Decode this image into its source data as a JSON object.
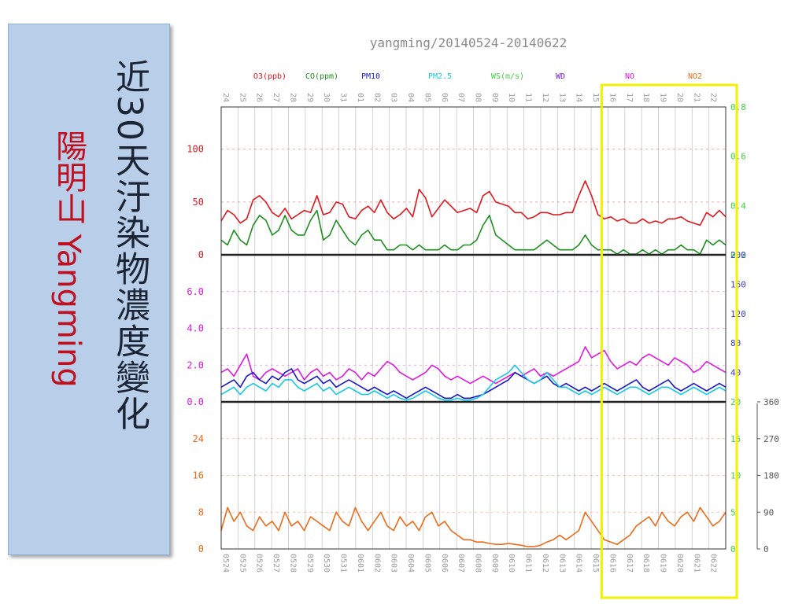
{
  "side_panel": {
    "title_vertical": "近30天汙染物濃度變化",
    "station_vertical": "陽明山 Yangming"
  },
  "colors": {
    "O3": "#e0181e",
    "CO": "#1e8f1e",
    "PM10": "#1818c8",
    "PM25": "#18c8e8",
    "WS": "#3cd23c",
    "WD": "#7a18c8",
    "NO": "#e018e0",
    "NO2": "#ee6a18",
    "highlight": "#f2f200"
  },
  "chart_data": {
    "type": "line",
    "title": "yangming/20140524-20140622",
    "legend": [
      "O3(ppb)",
      "CO(ppm)",
      "PM10",
      "PM2.5",
      "WS(m/s)",
      "WD",
      "NO",
      "NO2"
    ],
    "top_day_labels": [
      "24",
      "25",
      "26",
      "27",
      "28",
      "29",
      "30",
      "31",
      "01",
      "02",
      "03",
      "04",
      "05",
      "06",
      "07",
      "08",
      "09",
      "10",
      "11",
      "12",
      "13",
      "14",
      "15",
      "16",
      "17",
      "18",
      "19",
      "20",
      "21",
      "22"
    ],
    "bottom_day_labels": [
      "0524",
      "0525",
      "0526",
      "0527",
      "0528",
      "0529",
      "0530",
      "0531",
      "0601",
      "0602",
      "0603",
      "0604",
      "0605",
      "0606",
      "0607",
      "0608",
      "0609",
      "0610",
      "0611",
      "0612",
      "0613",
      "0614",
      "0615",
      "0616",
      "0617",
      "0618",
      "0619",
      "0620",
      "0621",
      "0622"
    ],
    "panels": [
      {
        "left_ticks": [
          "0",
          "50",
          "100"
        ],
        "left_values": [
          0,
          50,
          100
        ],
        "left_range": [
          0,
          140
        ],
        "right_ticks": [
          "0.2",
          "0.4",
          "0.6",
          "0.8"
        ],
        "right_values": [
          0.2,
          0.4,
          0.6,
          0.8
        ],
        "right_range": [
          0.2,
          0.8
        ],
        "series": [
          {
            "name": "O3(ppb)",
            "values": [
              32,
              42,
              38,
              30,
              34,
              52,
              56,
              50,
              40,
              36,
              44,
              34,
              38,
              42,
              40,
              56,
              38,
              40,
              50,
              48,
              36,
              34,
              42,
              46,
              40,
              52,
              40,
              34,
              38,
              44,
              36,
              62,
              54,
              36,
              44,
              52,
              46,
              40,
              42,
              44,
              40,
              56,
              60,
              50,
              48,
              46,
              40,
              40,
              34,
              36,
              40,
              40,
              38,
              38,
              40,
              40,
              56,
              70,
              56,
              38,
              34,
              36,
              32,
              34,
              30,
              30,
              34,
              30,
              32,
              30,
              34,
              34,
              36,
              32,
              30,
              28,
              40,
              36,
              42,
              36
            ]
          },
          {
            "name": "CO(ppm)",
            "values": [
              0.26,
              0.24,
              0.3,
              0.26,
              0.24,
              0.32,
              0.36,
              0.34,
              0.28,
              0.3,
              0.36,
              0.3,
              0.28,
              0.28,
              0.34,
              0.38,
              0.26,
              0.28,
              0.34,
              0.3,
              0.26,
              0.24,
              0.28,
              0.3,
              0.26,
              0.26,
              0.22,
              0.22,
              0.24,
              0.24,
              0.22,
              0.24,
              0.22,
              0.22,
              0.22,
              0.24,
              0.22,
              0.22,
              0.24,
              0.24,
              0.26,
              0.32,
              0.36,
              0.28,
              0.26,
              0.24,
              0.22,
              0.22,
              0.22,
              0.22,
              0.24,
              0.26,
              0.24,
              0.22,
              0.22,
              0.22,
              0.24,
              0.28,
              0.24,
              0.22,
              0.22,
              0.22,
              0.2,
              0.22,
              0.2,
              0.2,
              0.22,
              0.2,
              0.22,
              0.2,
              0.22,
              0.22,
              0.24,
              0.22,
              0.22,
              0.2,
              0.26,
              0.24,
              0.26,
              0.24
            ]
          }
        ]
      },
      {
        "left_ticks": [
          "0.0",
          "2.0",
          "4.0",
          "6.0"
        ],
        "left_values": [
          0,
          2,
          4,
          6
        ],
        "left_range": [
          0,
          8
        ],
        "right_ticks": [
          "40",
          "80",
          "120",
          "160",
          "200"
        ],
        "right_values": [
          40,
          80,
          120,
          160,
          200
        ],
        "right_range": [
          0,
          200
        ],
        "series": [
          {
            "name": "NO",
            "values": [
              1.6,
              1.8,
              1.4,
              2.0,
              2.6,
              1.4,
              1.2,
              1.6,
              1.8,
              1.6,
              1.4,
              1.6,
              1.8,
              1.2,
              1.6,
              1.8,
              1.4,
              1.6,
              1.2,
              1.4,
              1.8,
              1.6,
              1.2,
              1.6,
              1.4,
              1.8,
              2.2,
              2.0,
              1.6,
              1.4,
              1.2,
              1.4,
              1.6,
              2.0,
              1.8,
              1.4,
              1.2,
              1.4,
              1.2,
              1.0,
              1.2,
              1.4,
              1.2,
              1.0,
              1.2,
              1.4,
              1.6,
              1.4,
              1.6,
              1.8,
              1.4,
              1.6,
              1.4,
              1.6,
              1.8,
              2.0,
              2.2,
              3.0,
              2.4,
              2.6,
              2.8,
              2.2,
              1.8,
              2.0,
              2.2,
              2.0,
              2.4,
              2.6,
              2.4,
              2.2,
              2.0,
              2.4,
              2.2,
              2.0,
              1.6,
              1.8,
              2.2,
              2.0,
              1.8,
              1.6
            ]
          },
          {
            "name": "PM10",
            "values": [
              0.8,
              1.0,
              1.2,
              0.8,
              1.4,
              1.6,
              1.2,
              1.0,
              1.4,
              1.2,
              1.6,
              1.8,
              1.2,
              1.0,
              1.2,
              1.4,
              1.0,
              1.2,
              0.8,
              1.0,
              1.2,
              1.0,
              0.8,
              0.6,
              0.8,
              0.6,
              0.4,
              0.6,
              0.4,
              0.2,
              0.4,
              0.6,
              0.8,
              0.6,
              0.4,
              0.2,
              0.2,
              0.4,
              0.2,
              0.2,
              0.3,
              0.4,
              0.6,
              0.8,
              1.0,
              1.2,
              1.6,
              1.4,
              1.2,
              1.0,
              1.2,
              1.4,
              1.0,
              0.8,
              1.0,
              0.8,
              0.6,
              0.8,
              0.6,
              0.8,
              1.0,
              0.8,
              0.6,
              0.8,
              1.0,
              1.2,
              0.8,
              0.6,
              0.8,
              1.0,
              1.2,
              0.8,
              0.6,
              0.8,
              1.0,
              0.8,
              0.6,
              0.8,
              1.0,
              0.8
            ]
          },
          {
            "name": "PM2.5",
            "values": [
              0.4,
              0.6,
              0.8,
              0.4,
              0.8,
              1.0,
              0.8,
              0.6,
              1.0,
              0.8,
              1.2,
              1.2,
              0.8,
              0.6,
              0.8,
              1.0,
              0.6,
              0.8,
              0.4,
              0.6,
              0.8,
              0.6,
              0.4,
              0.4,
              0.6,
              0.4,
              0.2,
              0.4,
              0.2,
              0.1,
              0.2,
              0.4,
              0.6,
              0.4,
              0.2,
              0.1,
              0.1,
              0.2,
              0.1,
              0.1,
              0.2,
              0.4,
              0.8,
              1.2,
              1.4,
              1.6,
              2.0,
              1.6,
              1.2,
              1.0,
              1.2,
              1.6,
              1.2,
              0.8,
              0.8,
              0.6,
              0.4,
              0.6,
              0.4,
              0.6,
              0.8,
              0.6,
              0.4,
              0.6,
              0.8,
              0.8,
              0.6,
              0.4,
              0.6,
              0.8,
              0.8,
              0.6,
              0.4,
              0.6,
              0.8,
              0.6,
              0.4,
              0.6,
              0.8,
              0.6
            ]
          }
        ]
      },
      {
        "left_ticks": [
          "0",
          "8",
          "16",
          "24"
        ],
        "left_values": [
          0,
          8,
          16,
          24
        ],
        "left_range": [
          0,
          32
        ],
        "right_ticks": [
          "0",
          "5",
          "10",
          "15",
          "20"
        ],
        "right_values": [
          0,
          5,
          10,
          15,
          20
        ],
        "right_range": [
          0,
          20
        ],
        "right2_ticks": [
          "0",
          "90",
          "180",
          "270",
          "360"
        ],
        "right2_values": [
          0,
          90,
          180,
          270,
          360
        ],
        "right2_range": [
          0,
          360
        ],
        "series": [
          {
            "name": "NO2",
            "values": [
              4,
              9,
              6,
              8,
              5,
              4,
              7,
              5,
              6,
              4,
              8,
              5,
              6,
              4,
              7,
              6,
              5,
              4,
              8,
              6,
              5,
              9,
              6,
              4,
              6,
              8,
              5,
              4,
              7,
              5,
              6,
              4,
              7,
              8,
              5,
              6,
              4,
              3,
              2,
              2,
              1.5,
              1.5,
              1.2,
              1.0,
              1.0,
              1.2,
              1.0,
              0.8,
              0.5,
              0.5,
              0.8,
              1.5,
              2,
              3,
              2,
              3,
              4,
              8,
              6,
              4,
              2,
              1.5,
              1,
              2,
              3,
              5,
              6,
              7,
              5,
              8,
              6,
              5,
              7,
              8,
              6,
              9,
              7,
              5,
              6,
              8
            ]
          }
        ]
      }
    ],
    "highlight_box": {
      "from_day": "16",
      "to_day": "22"
    }
  }
}
